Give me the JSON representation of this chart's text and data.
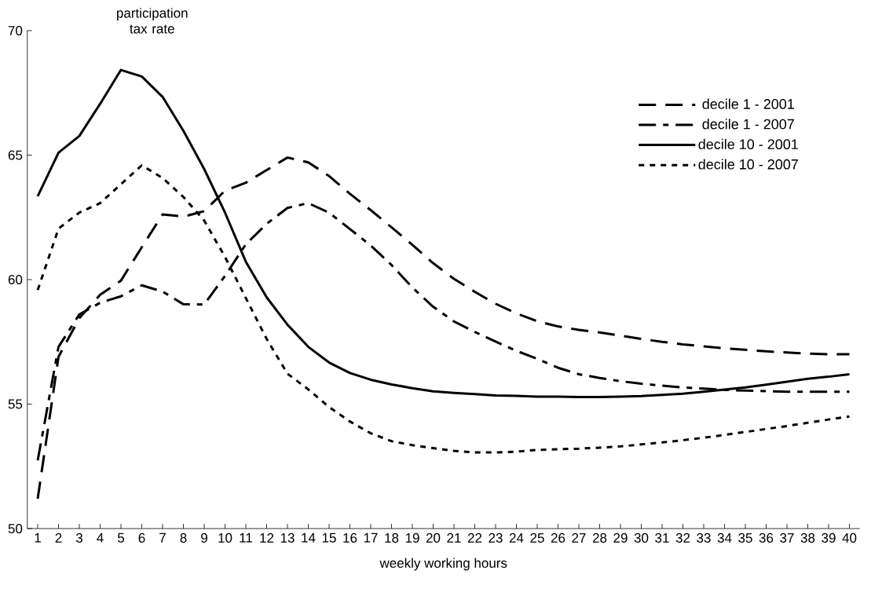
{
  "chart_data": {
    "type": "line",
    "ylabel": "participation tax rate",
    "xlabel": "weekly working hours",
    "categories": [
      "1",
      "2",
      "3",
      "4",
      "5",
      "6",
      "7",
      "8",
      "9",
      "10",
      "11",
      "12",
      "13",
      "14",
      "15",
      "16",
      "17",
      "18",
      "19",
      "20",
      "21",
      "22",
      "23",
      "24",
      "25",
      "26",
      "27",
      "28",
      "29",
      "30",
      "31",
      "32",
      "33",
      "34",
      "35",
      "36",
      "37",
      "38",
      "39",
      "40"
    ],
    "ylim": [
      50,
      70
    ],
    "yticks": [
      50,
      55,
      60,
      65,
      70
    ],
    "legend": "top right",
    "marker": "none",
    "series": [
      {
        "name": "decile 1 - 2001",
        "color": "#000000",
        "line_style": "dashed",
        "values": [
          51.2,
          56.9,
          58.45,
          59.39,
          59.96,
          61.3,
          62.62,
          62.53,
          62.75,
          63.57,
          63.89,
          64.4,
          64.9,
          64.71,
          64.16,
          63.45,
          62.79,
          62.1,
          61.4,
          60.66,
          60.03,
          59.51,
          59.03,
          58.64,
          58.33,
          58.12,
          57.98,
          57.88,
          57.75,
          57.62,
          57.5,
          57.4,
          57.32,
          57.24,
          57.18,
          57.12,
          57.07,
          57.03,
          57.0,
          57.0
        ]
      },
      {
        "name": "decile 1 - 2007",
        "color": "#000000",
        "line_style": "dashed",
        "values": [
          52.74,
          57.3,
          58.6,
          59.07,
          59.33,
          59.77,
          59.52,
          59.01,
          59.0,
          60.15,
          61.42,
          62.24,
          62.88,
          63.07,
          62.69,
          62.03,
          61.37,
          60.59,
          59.68,
          58.91,
          58.32,
          57.9,
          57.51,
          57.14,
          56.82,
          56.46,
          56.2,
          56.05,
          55.92,
          55.82,
          55.74,
          55.67,
          55.62,
          55.57,
          55.54,
          55.52,
          55.5,
          55.5,
          55.5,
          55.5
        ]
      },
      {
        "name": "decile 10 - 2001",
        "color": "#000000",
        "line_style": "solid",
        "values": [
          63.35,
          65.1,
          65.77,
          67.06,
          68.42,
          68.16,
          67.34,
          65.98,
          64.44,
          62.69,
          60.72,
          59.29,
          58.19,
          57.3,
          56.67,
          56.25,
          55.98,
          55.79,
          55.64,
          55.51,
          55.45,
          55.4,
          55.35,
          55.33,
          55.3,
          55.3,
          55.28,
          55.28,
          55.3,
          55.32,
          55.37,
          55.42,
          55.5,
          55.58,
          55.67,
          55.78,
          55.9,
          56.02,
          56.1,
          56.2
        ]
      },
      {
        "name": "decile 10 - 2007",
        "color": "#000000",
        "line_style": "dotted",
        "values": [
          59.58,
          62.05,
          62.69,
          63.07,
          63.83,
          64.59,
          64.08,
          63.32,
          62.37,
          60.91,
          59.26,
          57.62,
          56.22,
          55.59,
          54.88,
          54.3,
          53.83,
          53.51,
          53.35,
          53.23,
          53.12,
          53.06,
          53.06,
          53.09,
          53.16,
          53.19,
          53.21,
          53.25,
          53.3,
          53.38,
          53.46,
          53.55,
          53.65,
          53.76,
          53.88,
          54.0,
          54.12,
          54.25,
          54.38,
          54.5
        ]
      }
    ]
  }
}
